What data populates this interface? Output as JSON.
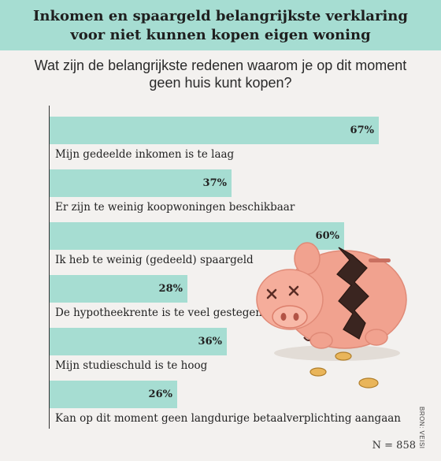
{
  "title_line1": "Inkomen en spaargeld belangrijkste verklaring",
  "title_line2": "voor niet kunnen kopen eigen woning",
  "question_line1": "Wat zijn de belangrijkste redenen waarom je op dit moment",
  "question_line2": "geen huis kunt kopen?",
  "sample_size": "N = 858",
  "source": "BRON: VEISI",
  "colors": {
    "header_bg": "#a6ddd2",
    "bar": "#a6ddd2",
    "background": "#f3f1ef"
  },
  "illustration": "broken-piggy-bank-with-coins",
  "chart_data": {
    "type": "bar",
    "orientation": "horizontal",
    "unit": "%",
    "xlim": [
      0,
      100
    ],
    "categories": [
      "Mijn gedeelde inkomen is te laag",
      "Er zijn te weinig koopwoningen beschikbaar",
      "Ik heb te weinig (gedeeld) spaargeld",
      "De hypotheekrente is te veel gestegen",
      "Mijn studieschuld is te hoog",
      "Kan op dit moment geen langdurige betaalverplichting aangaan"
    ],
    "values": [
      67,
      37,
      60,
      28,
      36,
      26
    ],
    "value_labels": [
      "67%",
      "37%",
      "60%",
      "28%",
      "36%",
      "26%"
    ]
  }
}
